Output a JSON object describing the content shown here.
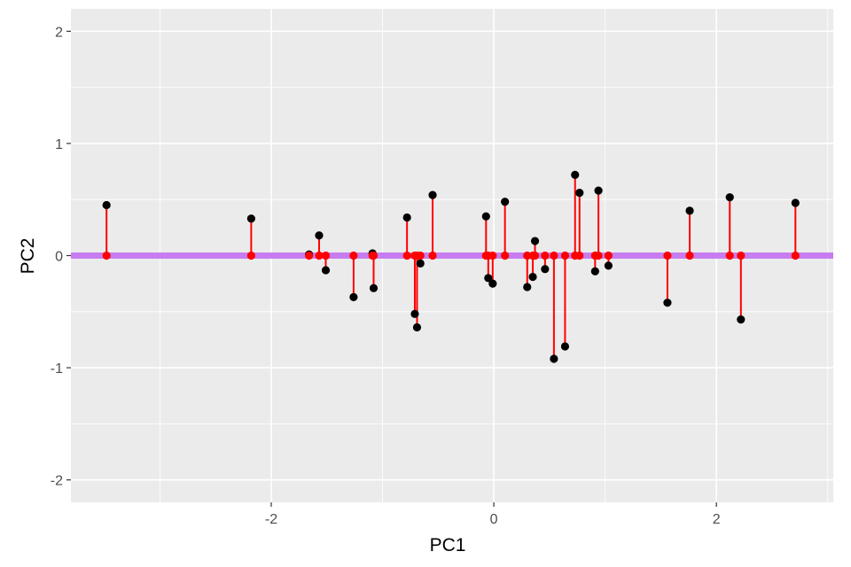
{
  "chart_data": {
    "type": "scatter",
    "title": "",
    "xlabel": "PC1",
    "ylabel": "PC2",
    "xlim": [
      -3.8,
      3.05
    ],
    "ylim": [
      -2.2,
      2.2
    ],
    "x_ticks": [
      -2,
      0,
      2
    ],
    "x_tick_labels": [
      "-2",
      "0",
      "2"
    ],
    "y_ticks": [
      -2,
      -1,
      0,
      1,
      2
    ],
    "y_tick_labels": [
      "-2",
      "-1",
      "0",
      "1",
      "2"
    ],
    "grid": true,
    "background_color": "#ebebeb",
    "grid_color": "#ffffff",
    "projection_line": {
      "y": 0,
      "color": "#c77cf0"
    },
    "segment_color": "#ff0000",
    "projected_point_color": "#ff0000",
    "original_point_color": "#000000",
    "points": [
      {
        "x": -3.48,
        "y": 0.45
      },
      {
        "x": -2.18,
        "y": 0.33
      },
      {
        "x": -1.66,
        "y": 0.01
      },
      {
        "x": -1.57,
        "y": 0.18
      },
      {
        "x": -1.51,
        "y": -0.13
      },
      {
        "x": -1.26,
        "y": -0.37
      },
      {
        "x": -1.09,
        "y": 0.02
      },
      {
        "x": -1.08,
        "y": -0.29
      },
      {
        "x": -0.78,
        "y": 0.34
      },
      {
        "x": -0.71,
        "y": -0.52
      },
      {
        "x": -0.69,
        "y": -0.64
      },
      {
        "x": -0.66,
        "y": -0.07
      },
      {
        "x": -0.55,
        "y": 0.54
      },
      {
        "x": -0.07,
        "y": 0.35
      },
      {
        "x": -0.05,
        "y": -0.2
      },
      {
        "x": -0.01,
        "y": -0.25
      },
      {
        "x": 0.1,
        "y": 0.48
      },
      {
        "x": 0.3,
        "y": -0.28
      },
      {
        "x": 0.35,
        "y": -0.19
      },
      {
        "x": 0.37,
        "y": 0.13
      },
      {
        "x": 0.46,
        "y": -0.12
      },
      {
        "x": 0.54,
        "y": -0.92
      },
      {
        "x": 0.64,
        "y": -0.81
      },
      {
        "x": 0.73,
        "y": 0.72
      },
      {
        "x": 0.77,
        "y": 0.56
      },
      {
        "x": 0.91,
        "y": -0.14
      },
      {
        "x": 0.94,
        "y": 0.58
      },
      {
        "x": 1.03,
        "y": -0.09
      },
      {
        "x": 1.56,
        "y": -0.42
      },
      {
        "x": 1.76,
        "y": 0.4
      },
      {
        "x": 2.12,
        "y": 0.52
      },
      {
        "x": 2.22,
        "y": -0.57
      },
      {
        "x": 2.71,
        "y": 0.47
      }
    ]
  }
}
